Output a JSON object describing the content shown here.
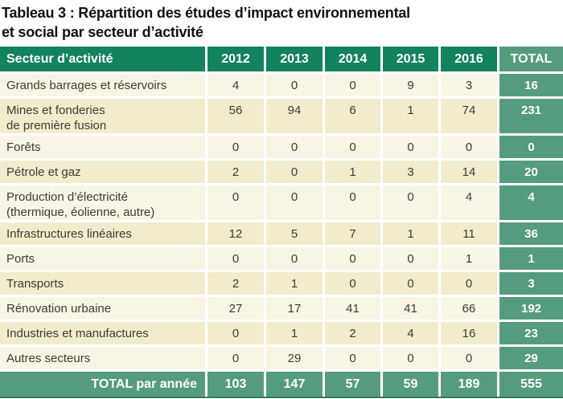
{
  "title": {
    "line1": "Tableau 3 : Répartition des études d’impact environnemental",
    "line2": "et social par secteur d’activité"
  },
  "table": {
    "header": {
      "sector": "Secteur d’activité",
      "years": [
        "2012",
        "2013",
        "2014",
        "2015",
        "2016"
      ],
      "total": "TOTAL"
    },
    "rows": [
      {
        "sector": "Grands barrages et réservoirs",
        "sector2": "",
        "values": [
          4,
          0,
          0,
          9,
          3
        ],
        "total": 16
      },
      {
        "sector": "Mines et fonderies",
        "sector2": "de première fusion",
        "values": [
          56,
          94,
          6,
          1,
          74
        ],
        "total": 231
      },
      {
        "sector": "Forêts",
        "sector2": "",
        "values": [
          0,
          0,
          0,
          0,
          0
        ],
        "total": 0
      },
      {
        "sector": "Pétrole et gaz",
        "sector2": "",
        "values": [
          2,
          0,
          1,
          3,
          14
        ],
        "total": 20
      },
      {
        "sector": "Production d’électricité",
        "sector2": "(thermique, éolienne, autre)",
        "values": [
          0,
          0,
          0,
          0,
          4
        ],
        "total": 4
      },
      {
        "sector": "Infrastructures linéaires",
        "sector2": "",
        "values": [
          12,
          5,
          7,
          1,
          11
        ],
        "total": 36
      },
      {
        "sector": "Ports",
        "sector2": "",
        "values": [
          0,
          0,
          0,
          0,
          1
        ],
        "total": 1
      },
      {
        "sector": "Transports",
        "sector2": "",
        "values": [
          2,
          1,
          0,
          0,
          0
        ],
        "total": 3
      },
      {
        "sector": "Rénovation urbaine",
        "sector2": "",
        "values": [
          27,
          17,
          41,
          41,
          66
        ],
        "total": 192
      },
      {
        "sector": "Industries et manufactures",
        "sector2": "",
        "values": [
          0,
          1,
          2,
          4,
          16
        ],
        "total": 23
      },
      {
        "sector": "Autres secteurs",
        "sector2": "",
        "values": [
          0,
          29,
          0,
          0,
          0
        ],
        "total": 29
      }
    ],
    "footer": {
      "label": "TOTAL par année",
      "values": [
        103,
        147,
        57,
        59,
        189
      ],
      "total": 555
    }
  },
  "colors": {
    "header_green": "#12825F",
    "accent_green": "#559C7E",
    "row_light": "#F9F5E4",
    "row_dark": "#F2ECCC",
    "separator": "#FFFFFF",
    "bottom_line": "#37795F",
    "text_dark": "#3C3B37"
  }
}
